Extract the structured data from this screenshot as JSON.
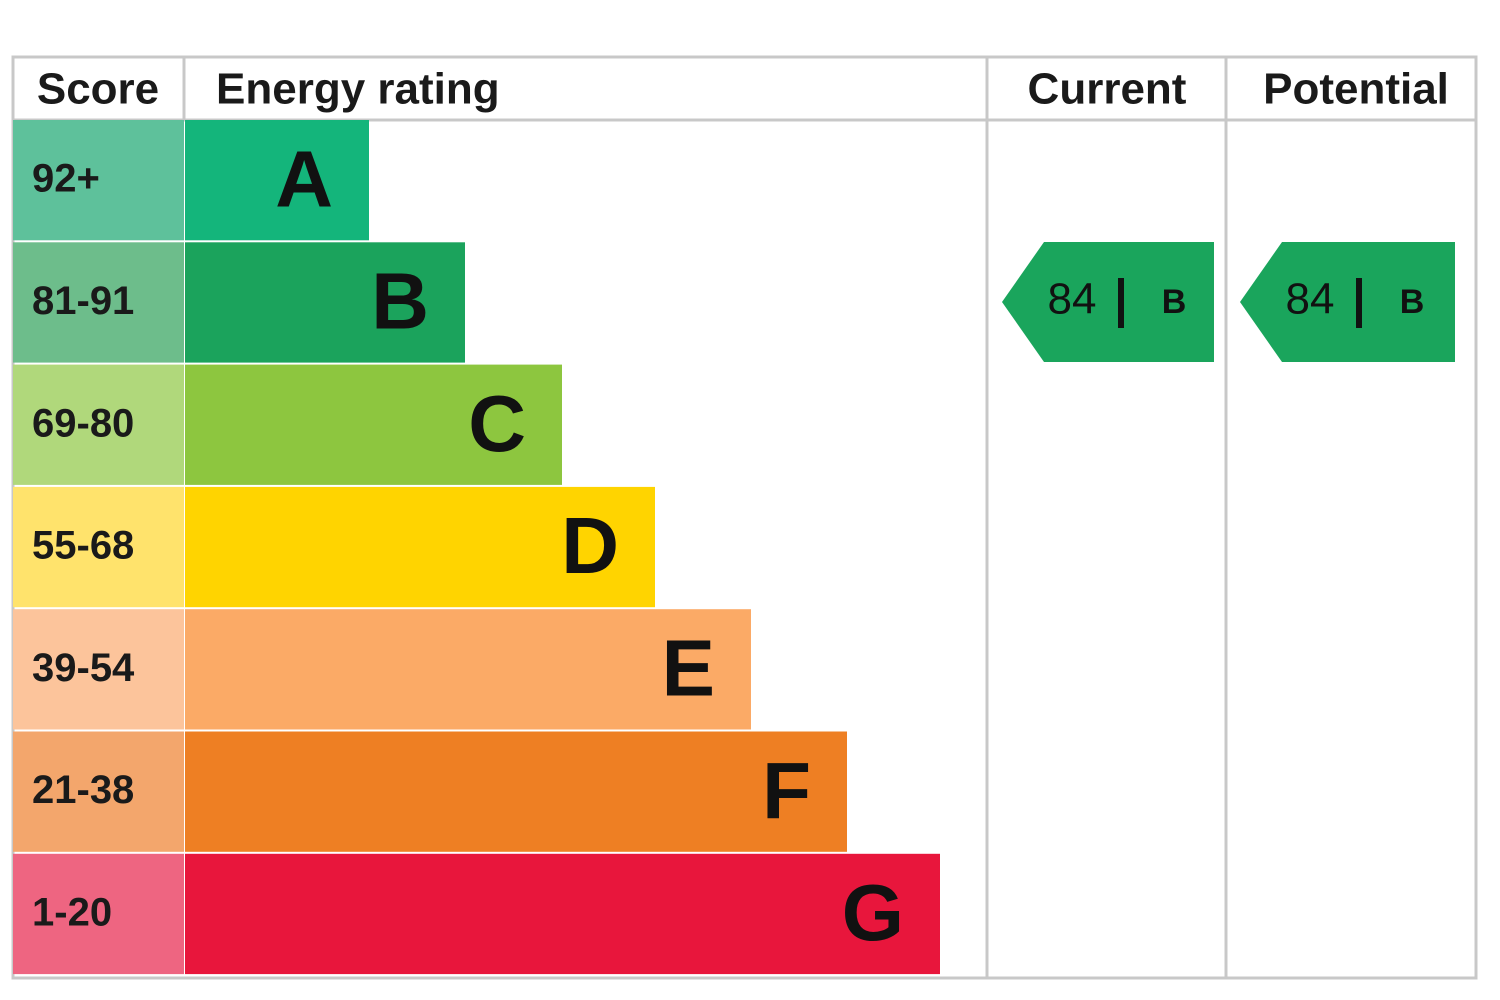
{
  "header": {
    "score": "Score",
    "rating": "Energy rating",
    "current": "Current",
    "potential": "Potential"
  },
  "bands": [
    {
      "score": "92+",
      "letter": "A"
    },
    {
      "score": "81-91",
      "letter": "B"
    },
    {
      "score": "69-80",
      "letter": "C"
    },
    {
      "score": "55-68",
      "letter": "D"
    },
    {
      "score": "39-54",
      "letter": "E"
    },
    {
      "score": "21-38",
      "letter": "F"
    },
    {
      "score": "1-20",
      "letter": "G"
    }
  ],
  "current": {
    "value": 84,
    "letter": "B"
  },
  "potential": {
    "value": 84,
    "letter": "B"
  }
}
